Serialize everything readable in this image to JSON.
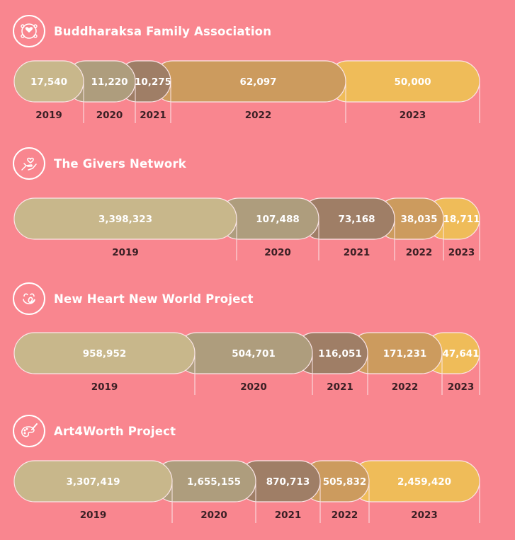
{
  "colors": {
    "background": "#f9868f",
    "seg_2019": "#c8b78b",
    "seg_2020": "#ae9d7d",
    "seg_2021": "#9f7e66",
    "seg_2022": "#cc9b5e",
    "seg_2023": "#efbc59",
    "divider": "#fbe6e8"
  },
  "chart_data": [
    {
      "type": "bar",
      "title": "Buddharaksa Family Association",
      "icon": "family-heart-icon",
      "categories": [
        "2019",
        "2020",
        "2021",
        "2022",
        "2023"
      ],
      "values": [
        17540,
        11220,
        10275,
        62097,
        50000
      ],
      "value_labels": [
        "17,540",
        "11,220",
        "10,275",
        "62,097",
        "50,000"
      ]
    },
    {
      "type": "bar",
      "title": "The Givers Network",
      "icon": "hand-heart-icon",
      "categories": [
        "2019",
        "2020",
        "2021",
        "2022",
        "2023"
      ],
      "values": [
        3398323,
        107488,
        73168,
        38035,
        18711
      ],
      "value_labels": [
        "3,398,323",
        "107,488",
        "73,168",
        "38,035",
        "18,711"
      ]
    },
    {
      "type": "bar",
      "title": "New Heart New World Project",
      "icon": "smiley-heart-icon",
      "categories": [
        "2019",
        "2020",
        "2021",
        "2022",
        "2023"
      ],
      "values": [
        958952,
        504701,
        116051,
        171231,
        47641
      ],
      "value_labels": [
        "958,952",
        "504,701",
        "116,051",
        "171,231",
        "47,641"
      ]
    },
    {
      "type": "bar",
      "title": "Art4Worth Project",
      "icon": "palette-brush-icon",
      "categories": [
        "2019",
        "2020",
        "2021",
        "2022",
        "2023"
      ],
      "values": [
        3307419,
        1655155,
        870713,
        505832,
        2459420
      ],
      "value_labels": [
        "3,307,419",
        "1,655,155",
        "870,713",
        "505,832",
        "2,459,420"
      ]
    }
  ]
}
